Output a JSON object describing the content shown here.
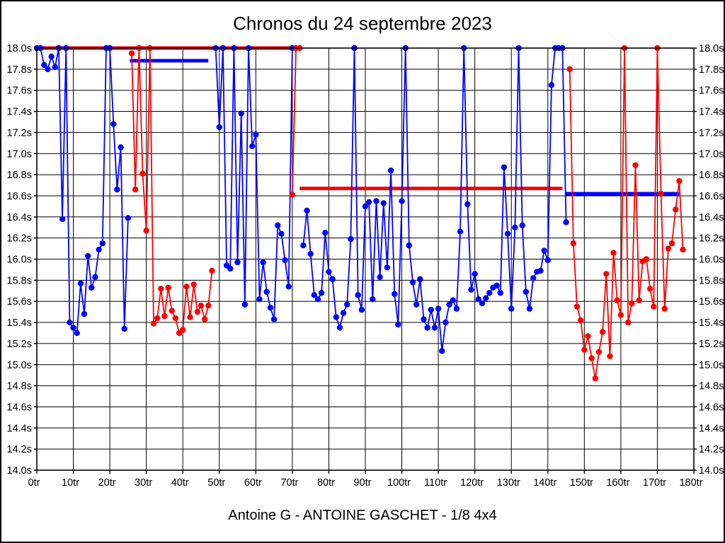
{
  "title": "Chronos du 24 septembre 2023",
  "footer": "Antoine G - ANTOINE GASCHET - 1/8 4x4",
  "chart_data": {
    "type": "line",
    "title": "Chronos du 24 septembre 2023",
    "subtitle": "Antoine G - ANTOINE GASCHET - 1/8 4x4",
    "grid": true,
    "legend_position": "none",
    "x_axis": {
      "min": 0,
      "max": 180,
      "step": 10,
      "unit": "tr",
      "tick_suffix": "tr"
    },
    "y_axis": {
      "min": 14.0,
      "max": 18.0,
      "step": 0.2,
      "unit": "s",
      "tick_suffix": "s",
      "clip_max": 18.0,
      "labels_both_sides": true
    },
    "colors": {
      "blue_run": "#0000ff",
      "red_run": "#ff0000",
      "grid": "#000000",
      "axis": "#000000"
    },
    "series": [
      {
        "name": "run-1-blue",
        "color": "#0000ff",
        "start_lap": 0,
        "values": [
          18.0,
          18.0,
          17.84,
          17.8,
          17.92,
          17.82,
          18.0,
          16.38,
          18.0,
          15.4,
          15.35,
          15.3,
          15.77,
          15.48,
          16.03,
          15.73,
          15.83,
          16.09,
          16.15,
          18.0,
          18.0,
          17.28,
          16.66,
          17.06,
          15.34,
          16.39
        ]
      },
      {
        "name": "run-2-red",
        "color": "#ff0000",
        "start_lap": 26,
        "values": [
          17.95,
          16.66,
          18.0,
          16.81,
          16.27,
          18.0,
          15.39,
          15.44,
          15.72,
          15.46,
          15.73,
          15.51,
          15.44,
          15.3,
          15.33,
          15.74,
          15.45,
          15.76,
          15.5,
          15.56,
          15.43,
          15.56,
          15.89
        ]
      },
      {
        "name": "run-3-blue",
        "color": "#0000ff",
        "start_lap": 49,
        "values": [
          18.0,
          17.25,
          18.0,
          15.94,
          15.91,
          18.0,
          15.97,
          17.38,
          15.57,
          18.0,
          17.07,
          17.18,
          15.62,
          15.97,
          15.69,
          15.54,
          15.43,
          16.32,
          16.24,
          15.99,
          15.74,
          18.0
        ]
      },
      {
        "name": "run-4-red",
        "color": "#ff0000",
        "start_lap": 70,
        "values": [
          16.61,
          18.0,
          18.0
        ]
      },
      {
        "name": "run-5-blue",
        "color": "#0000ff",
        "start_lap": 73,
        "values": [
          16.13,
          16.46,
          16.05,
          15.66,
          15.62,
          15.68,
          16.25,
          15.88,
          15.81,
          15.45,
          15.35,
          15.49,
          15.57,
          16.19,
          18.0,
          15.66,
          15.52,
          16.5,
          16.54,
          15.62,
          16.55,
          15.83,
          16.53,
          15.92,
          16.84,
          15.67,
          15.38,
          16.55,
          18.0,
          16.13,
          15.78,
          15.57,
          15.81,
          15.43,
          15.35,
          15.52,
          15.35,
          15.53,
          15.13,
          15.4,
          15.57,
          15.61,
          15.53,
          16.26,
          18.0,
          16.52,
          15.71,
          15.86,
          15.62,
          15.58,
          15.63,
          15.68,
          15.73,
          15.75,
          15.68,
          16.87,
          16.24,
          15.53,
          16.3,
          18.0,
          16.32,
          15.69,
          15.53,
          15.82,
          15.88,
          15.89,
          16.08,
          15.99,
          17.65,
          18.0,
          18.0,
          18.0,
          16.35
        ]
      },
      {
        "name": "run-6-red",
        "color": "#ff0000",
        "start_lap": 146,
        "values": [
          17.8,
          16.15,
          15.55,
          15.42,
          15.14,
          15.27,
          15.06,
          14.87,
          15.12,
          15.31,
          15.86,
          15.08,
          16.06,
          15.61,
          15.47,
          18.0,
          15.4,
          15.58,
          16.89,
          15.61,
          15.98,
          16.0,
          15.72,
          15.55,
          18.0,
          16.62,
          15.53,
          16.1,
          16.15,
          16.47,
          16.74,
          16.09
        ]
      }
    ],
    "average_lines": [
      {
        "name": "avg-line-1",
        "color": "#ff0000",
        "value": 18.0,
        "from_lap": 0,
        "to_lap": 71
      },
      {
        "name": "avg-line-2",
        "color": "#0000ff",
        "value": 17.88,
        "from_lap": 25.5,
        "to_lap": 47
      },
      {
        "name": "avg-line-3",
        "color": "#ff0000",
        "value": 16.67,
        "from_lap": 72,
        "to_lap": 144
      },
      {
        "name": "avg-line-4",
        "color": "#0000ff",
        "value": 16.62,
        "from_lap": 145,
        "to_lap": 176
      }
    ]
  }
}
